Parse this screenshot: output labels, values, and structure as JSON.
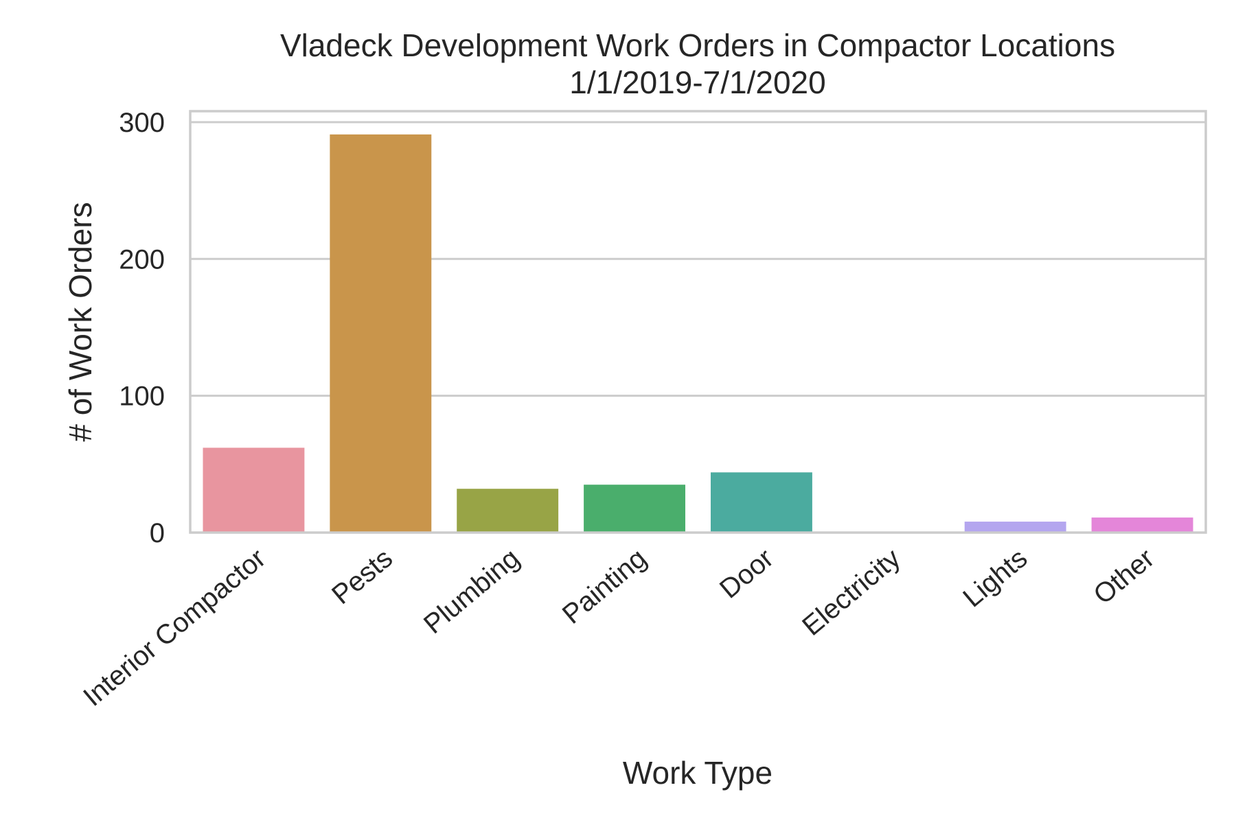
{
  "chart_data": {
    "type": "bar",
    "title": "Vladeck Development Work Orders in Compactor Locations",
    "subtitle": "1/1/2019-7/1/2020",
    "xlabel": "Work Type",
    "ylabel": "# of Work Orders",
    "categories": [
      "Interior Compactor",
      "Pests",
      "Plumbing",
      "Painting",
      "Door",
      "Electricity",
      "Lights",
      "Other"
    ],
    "values": [
      62,
      291,
      32,
      35,
      44,
      0,
      8,
      11
    ],
    "colors": [
      "#e8959f",
      "#c9954b",
      "#98a446",
      "#4aae6c",
      "#4bab9f",
      "#4aa3c7",
      "#b4a6ef",
      "#e486d9"
    ],
    "ylim": [
      0,
      300
    ],
    "yticks": [
      0,
      100,
      200,
      300
    ],
    "grid": true,
    "legend": "none"
  }
}
